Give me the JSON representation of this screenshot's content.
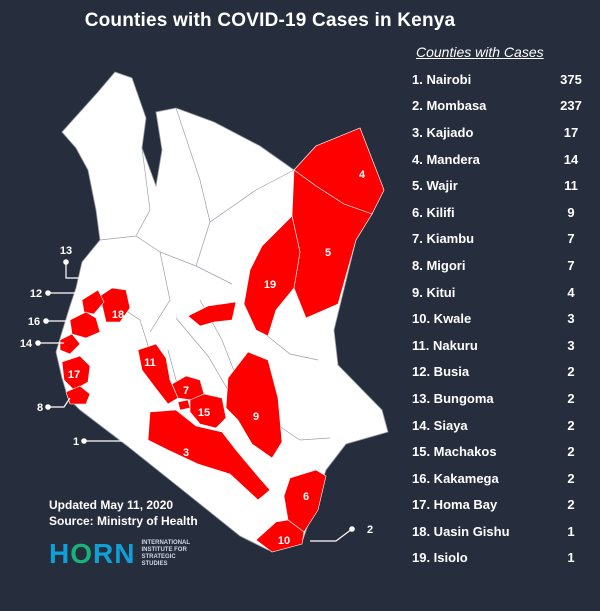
{
  "title": "Counties with COVID-19 Cases in Kenya",
  "legend": {
    "heading": "Counties with Cases",
    "items": [
      {
        "label": "1. Nairobi",
        "value": "375"
      },
      {
        "label": "2. Mombasa",
        "value": "237"
      },
      {
        "label": "3. Kajiado",
        "value": "17"
      },
      {
        "label": "4. Mandera",
        "value": "14"
      },
      {
        "label": "5.  Wajir",
        "value": "11"
      },
      {
        "label": "6. Kilifi",
        "value": "9"
      },
      {
        "label": "7. Kiambu",
        "value": "7"
      },
      {
        "label": "8. Migori",
        "value": "7"
      },
      {
        "label": "9. Kitui",
        "value": "4"
      },
      {
        "label": "10. Kwale",
        "value": "3"
      },
      {
        "label": "11. Nakuru",
        "value": "3"
      },
      {
        "label": "12. Busia",
        "value": "2"
      },
      {
        "label": "13. Bungoma",
        "value": "2"
      },
      {
        "label": "14. Siaya",
        "value": "2"
      },
      {
        "label": "15. Machakos",
        "value": "2"
      },
      {
        "label": "16. Kakamega",
        "value": "2"
      },
      {
        "label": "17. Homa Bay",
        "value": "2"
      },
      {
        "label": "18. Uasin Gishu",
        "value": "1"
      },
      {
        "label": "19. Isiolo",
        "value": "1"
      }
    ]
  },
  "map_labels": {
    "mandera": "4",
    "wajir": "5",
    "isiolo": "19",
    "uasin_gishu": "18",
    "nakuru": "11",
    "kiambu": "7",
    "machakos": "15",
    "kitui": "9",
    "kajiado": "3",
    "kilifi": "6",
    "kwale": "10",
    "homa_bay": "17",
    "callout_1": "1",
    "callout_2": "2",
    "callout_8": "8",
    "callout_12": "12",
    "callout_13": "13",
    "callout_14": "14",
    "callout_16": "16"
  },
  "footer": {
    "updated": "Updated May 11, 2020",
    "source": "Source: Ministry of Health"
  },
  "logo": {
    "word_start": "H",
    "word_o": "O",
    "word_end": "RN",
    "sub1": "INTERNATIONAL",
    "sub2": "INSTITUTE FOR",
    "sub3": "STRATEGIC",
    "sub4": "STUDIES"
  },
  "colors": {
    "background": "#262e3e",
    "case_county": "#ff0000",
    "no_case_county": "#ffffff"
  }
}
